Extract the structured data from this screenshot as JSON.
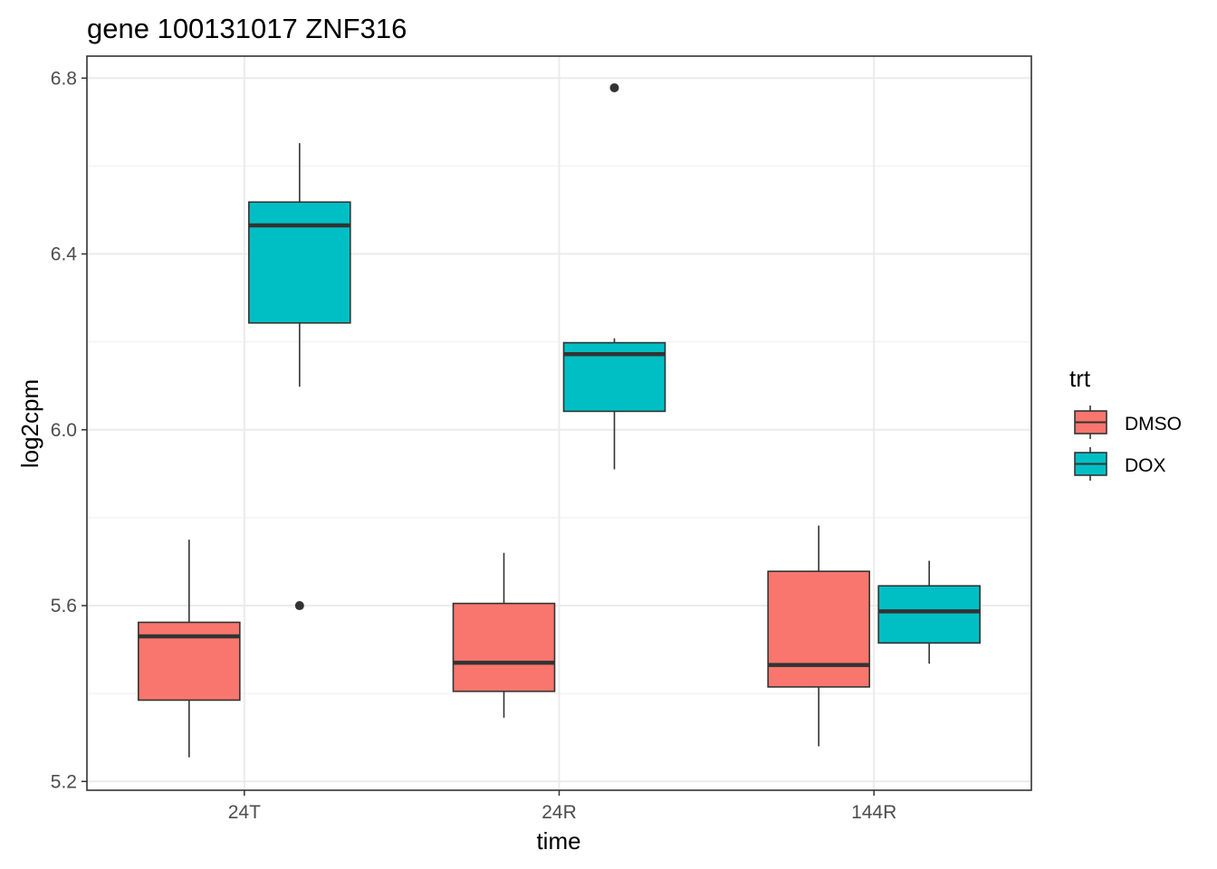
{
  "chart_data": {
    "type": "boxplot",
    "title": "gene 100131017 ZNF316",
    "xlabel": "time",
    "ylabel": "log2cpm",
    "categories": [
      "24T",
      "24R",
      "144R"
    ],
    "ylim": [
      5.18,
      6.85
    ],
    "yticks": [
      5.2,
      5.6,
      6.0,
      6.4,
      6.8
    ],
    "ytick_labels": [
      "5.2",
      "5.6",
      "6.0",
      "6.4",
      "6.8"
    ],
    "grid": true,
    "legend": {
      "title": "trt",
      "position": "right",
      "entries": [
        {
          "label": "DMSO",
          "color": "#F8766D"
        },
        {
          "label": "DOX",
          "color": "#00BFC4"
        }
      ]
    },
    "series": [
      {
        "name": "DMSO",
        "color": "#F8766D",
        "boxes": [
          {
            "category": "24T",
            "min": 5.255,
            "q1": 5.385,
            "median": 5.53,
            "q3": 5.562,
            "max": 5.75,
            "outliers": []
          },
          {
            "category": "24R",
            "min": 5.345,
            "q1": 5.405,
            "median": 5.47,
            "q3": 5.605,
            "max": 5.72,
            "outliers": []
          },
          {
            "category": "144R",
            "min": 5.28,
            "q1": 5.415,
            "median": 5.465,
            "q3": 5.678,
            "max": 5.782,
            "outliers": []
          }
        ]
      },
      {
        "name": "DOX",
        "color": "#00BFC4",
        "boxes": [
          {
            "category": "24T",
            "min": 6.098,
            "q1": 6.243,
            "median": 6.465,
            "q3": 6.518,
            "max": 6.652,
            "outliers": [
              5.6
            ]
          },
          {
            "category": "24R",
            "min": 5.91,
            "q1": 6.042,
            "median": 6.172,
            "q3": 6.198,
            "max": 6.208,
            "outliers": [
              6.778
            ]
          },
          {
            "category": "144R",
            "min": 5.468,
            "q1": 5.515,
            "median": 5.587,
            "q3": 5.645,
            "max": 5.702,
            "outliers": []
          }
        ]
      }
    ]
  }
}
